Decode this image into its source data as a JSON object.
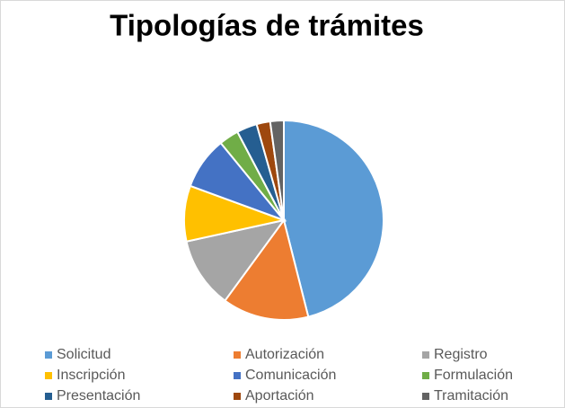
{
  "chart_data": {
    "type": "pie",
    "title": "Tipologías de trámites",
    "categories": [
      "Solicitud",
      "Autorización",
      "Registro",
      "Inscripción",
      "Comunicación",
      "Formulación",
      "Presentación",
      "Aportación",
      "Tramitación"
    ],
    "values": [
      46,
      14,
      11.5,
      9,
      8.5,
      3.2,
      3.3,
      2.2,
      2.2
    ],
    "colors": [
      "#5b9bd5",
      "#ed7d31",
      "#a5a5a5",
      "#ffc000",
      "#4472c4",
      "#70ad47",
      "#255e91",
      "#9e480e",
      "#636363"
    ],
    "legend": "bottom"
  }
}
